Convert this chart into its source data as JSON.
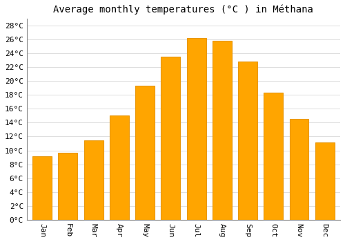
{
  "title": "Average monthly temperatures (°C ) in Méthana",
  "months": [
    "Jan",
    "Feb",
    "Mar",
    "Apr",
    "May",
    "Jun",
    "Jul",
    "Aug",
    "Sep",
    "Oct",
    "Nov",
    "Dec"
  ],
  "temperatures": [
    9.2,
    9.7,
    11.4,
    15.0,
    19.3,
    23.5,
    26.2,
    25.8,
    22.8,
    18.3,
    14.5,
    11.1
  ],
  "bar_color": "#FFA500",
  "bar_edge_color": "#E8970A",
  "background_color": "#ffffff",
  "grid_color": "#dddddd",
  "ylim": [
    0,
    29
  ],
  "ytick_step": 2,
  "title_fontsize": 10,
  "tick_fontsize": 8,
  "font_family": "monospace"
}
